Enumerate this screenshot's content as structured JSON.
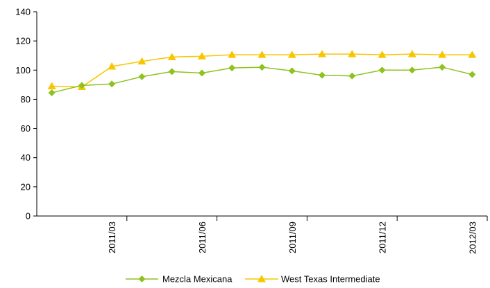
{
  "chart_data": {
    "type": "line",
    "title": "",
    "xlabel": "",
    "ylabel": "",
    "ylim": [
      0,
      140
    ],
    "yticks": [
      0,
      20,
      40,
      60,
      80,
      100,
      120,
      140
    ],
    "grid": false,
    "legend_position": "bottom",
    "categories": [
      "2011/01",
      "2011/02",
      "2011/03",
      "2011/04",
      "2011/05",
      "2011/06",
      "2011/07",
      "2011/08",
      "2011/09",
      "2011/10",
      "2011/11",
      "2011/12",
      "2012/01",
      "2012/02",
      "2012/03"
    ],
    "x_tick_labels": [
      {
        "category_index": 2,
        "label": "2011/03"
      },
      {
        "category_index": 5,
        "label": "2011/06"
      },
      {
        "category_index": 8,
        "label": "2011/09"
      },
      {
        "category_index": 11,
        "label": "2011/12"
      },
      {
        "category_index": 14,
        "label": "2012/03"
      }
    ],
    "series": [
      {
        "name": "Mezcla Mexicana",
        "color": "#8dc21f",
        "marker": "diamond",
        "values": [
          84.5,
          89.5,
          90.5,
          95.5,
          99,
          98,
          101.5,
          102,
          99.5,
          96.5,
          96,
          100,
          100,
          102,
          97
        ]
      },
      {
        "name": "West Texas Intermediate",
        "color": "#f7c600",
        "marker": "triangle",
        "values": [
          89,
          88.5,
          102.5,
          106,
          109,
          109.5,
          110.5,
          110.5,
          110.5,
          111,
          111,
          110.5,
          111,
          110.5,
          110.5
        ]
      }
    ]
  }
}
